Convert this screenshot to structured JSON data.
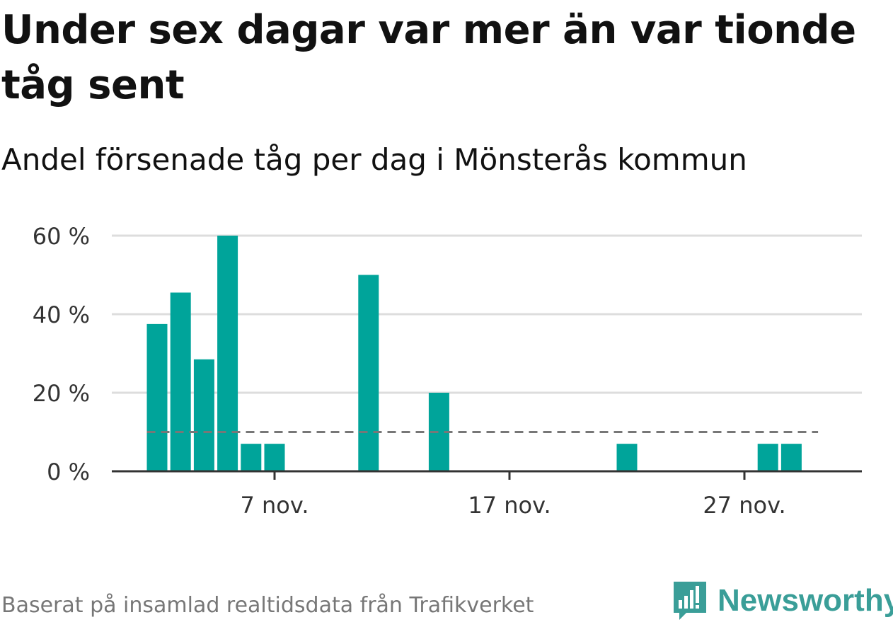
{
  "title": "Under sex dagar var mer än var tionde tåg sent",
  "subtitle": "Andel försenade tåg per dag i Mönsterås kommun",
  "footer": "Baserat på insamlad realtidsdata från Trafikverket",
  "brand": {
    "name": "Newsworthy",
    "icon": "newsworthy-logo-icon",
    "color": "#3a9e98"
  },
  "colors": {
    "bar": "#00a49a",
    "reference": "#777777",
    "grid": "#dddddd",
    "axis": "#333333"
  },
  "chart_data": {
    "type": "bar",
    "x": [
      "2 nov.",
      "3 nov.",
      "4 nov.",
      "5 nov.",
      "6 nov.",
      "7 nov.",
      "8 nov.",
      "9 nov.",
      "10 nov.",
      "11 nov.",
      "12 nov.",
      "13 nov.",
      "14 nov.",
      "15 nov.",
      "16 nov.",
      "17 nov.",
      "18 nov.",
      "19 nov.",
      "20 nov.",
      "21 nov.",
      "22 nov.",
      "23 nov.",
      "24 nov.",
      "25 nov.",
      "26 nov.",
      "27 nov.",
      "28 nov.",
      "29 nov.",
      "30 nov."
    ],
    "values": [
      37.5,
      45.5,
      28.5,
      60,
      7,
      7,
      0,
      0,
      0,
      50,
      0,
      0,
      20,
      0,
      0,
      0,
      0,
      0,
      0,
      0,
      7,
      0,
      0,
      0,
      0,
      0,
      7,
      7,
      0
    ],
    "reference_line": {
      "value": 10,
      "style": "dashed"
    },
    "x_ticks": [
      "7 nov.",
      "17 nov.",
      "27 nov."
    ],
    "y_ticks": [
      0,
      20,
      40,
      60
    ],
    "y_tick_labels": [
      "0 %",
      "20 %",
      "40 %",
      "60 %"
    ],
    "ylim": [
      0,
      60
    ],
    "grid": true,
    "legend": "none"
  }
}
